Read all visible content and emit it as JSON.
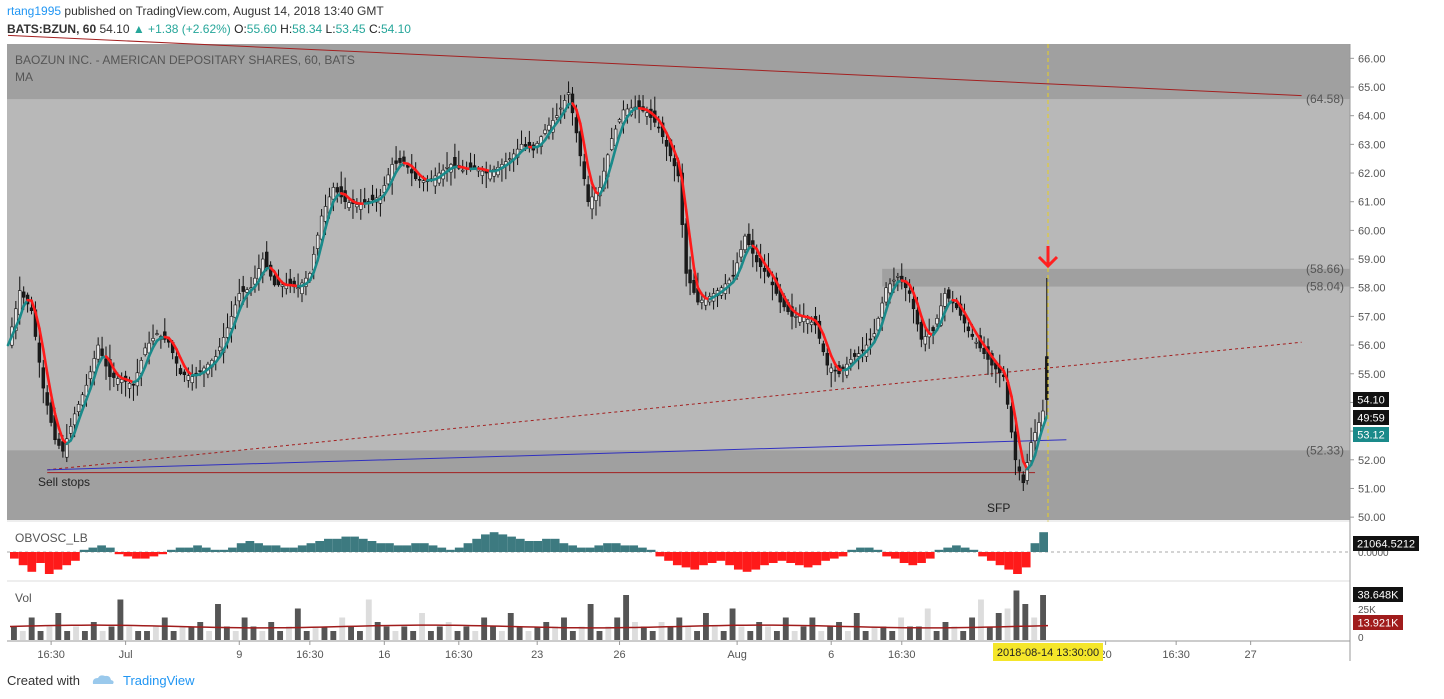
{
  "header": {
    "user": "rtang1995",
    "published": "published on TradingView.com, August 14, 2018 13:40 GMT",
    "symbol": "BATS:BZUN, 60",
    "last": "54.10",
    "change": "▲ +1.38 (+2.62%)",
    "o_label": "O:",
    "o": "55.60",
    "h_label": "H:",
    "h": "58.34",
    "l_label": "L:",
    "l": "53.45",
    "c_label": "C:",
    "c": "54.10"
  },
  "footer": {
    "created": "Created with",
    "brand": "TradingView"
  },
  "colors": {
    "panel": "#b8b8b8",
    "zone": "#a0a0a0",
    "up": "#e8e8e8",
    "down": "#1a1a1a",
    "ma_up": "#1a8a8a",
    "ma_down": "#ff1a1a",
    "resistance": "#a32020",
    "support_blue": "#3030c0",
    "osc_pos": "#3d7a80",
    "osc_neg": "#ff1a1a",
    "vol_ma": "#a01c1c",
    "arrow": "#ff2020",
    "cursor": "#e8d020"
  },
  "chart_data": [
    {
      "type": "candlestick",
      "title": "BAOZUN INC. - AMERICAN DEPOSITARY SHARES, 60, BATS",
      "indicator": "MA",
      "ylim": [
        49.9,
        66.5
      ],
      "y_ticks": [
        "50.00",
        "51.00",
        "52.00",
        "53.00",
        "54.00",
        "55.00",
        "56.00",
        "57.00",
        "58.00",
        "59.00",
        "60.00",
        "61.00",
        "62.00",
        "63.00",
        "64.00",
        "65.00",
        "66.00"
      ],
      "x_ticks": [
        "16:30",
        "Jul",
        "9",
        "16:30",
        "16",
        "16:30",
        "23",
        "26",
        "Aug",
        "6",
        "16:30",
        "20",
        "16:30",
        "27"
      ],
      "x_index_range": [
        0,
        250
      ],
      "x_ticks_index": [
        11,
        30,
        59,
        77,
        96,
        115,
        135,
        156,
        186,
        210,
        228,
        280,
        298,
        317
      ],
      "close_path": [
        [
          0,
          56.0
        ],
        [
          3,
          57.9
        ],
        [
          6,
          57.2
        ],
        [
          9,
          54.5
        ],
        [
          12,
          52.7
        ],
        [
          14,
          52.3
        ],
        [
          17,
          53.6
        ],
        [
          20,
          54.6
        ],
        [
          23,
          56.0
        ],
        [
          26,
          54.9
        ],
        [
          29,
          54.8
        ],
        [
          32,
          54.6
        ],
        [
          35,
          55.9
        ],
        [
          38,
          56.4
        ],
        [
          41,
          56.1
        ],
        [
          44,
          55.0
        ],
        [
          47,
          54.9
        ],
        [
          50,
          55.2
        ],
        [
          53,
          55.6
        ],
        [
          56,
          56.6
        ],
        [
          59,
          57.8
        ],
        [
          62,
          58.0
        ],
        [
          65,
          59.0
        ],
        [
          68,
          58.1
        ],
        [
          71,
          58.1
        ],
        [
          74,
          58.0
        ],
        [
          77,
          58.5
        ],
        [
          80,
          60.5
        ],
        [
          83,
          61.5
        ],
        [
          86,
          61.0
        ],
        [
          89,
          60.9
        ],
        [
          92,
          61.0
        ],
        [
          95,
          61.2
        ],
        [
          98,
          62.3
        ],
        [
          101,
          62.4
        ],
        [
          104,
          61.8
        ],
        [
          107,
          61.7
        ],
        [
          110,
          62.0
        ],
        [
          113,
          62.3
        ],
        [
          116,
          62.1
        ],
        [
          119,
          62.2
        ],
        [
          122,
          62.0
        ],
        [
          125,
          62.2
        ],
        [
          128,
          62.5
        ],
        [
          131,
          63.0
        ],
        [
          134,
          62.8
        ],
        [
          137,
          63.5
        ],
        [
          140,
          64.0
        ],
        [
          143,
          64.8
        ],
        [
          145,
          63.4
        ],
        [
          148,
          61.0
        ],
        [
          151,
          61.5
        ],
        [
          154,
          63.2
        ],
        [
          157,
          64.2
        ],
        [
          160,
          64.3
        ],
        [
          163,
          64.1
        ],
        [
          166,
          63.6
        ],
        [
          169,
          62.6
        ],
        [
          171,
          61.9
        ],
        [
          173,
          58.5
        ],
        [
          176,
          57.5
        ],
        [
          179,
          57.7
        ],
        [
          182,
          58.0
        ],
        [
          185,
          58.4
        ],
        [
          188,
          59.8
        ],
        [
          191,
          58.9
        ],
        [
          194,
          58.4
        ],
        [
          197,
          57.5
        ],
        [
          200,
          57.0
        ],
        [
          203,
          57.0
        ],
        [
          206,
          56.7
        ],
        [
          209,
          55.3
        ],
        [
          212,
          55.0
        ],
        [
          215,
          55.5
        ],
        [
          218,
          55.8
        ],
        [
          221,
          56.4
        ],
        [
          224,
          58.0
        ],
        [
          227,
          58.4
        ],
        [
          230,
          57.8
        ],
        [
          233,
          56.2
        ],
        [
          236,
          56.5
        ],
        [
          239,
          57.8
        ],
        [
          242,
          57.3
        ],
        [
          245,
          56.5
        ],
        [
          248,
          55.9
        ],
        [
          251,
          55.3
        ],
        [
          254,
          54.9
        ],
        [
          257,
          52.0
        ],
        [
          259,
          51.2
        ],
        [
          261,
          52.6
        ],
        [
          263,
          53.3
        ],
        [
          265,
          54.1
        ]
      ],
      "resistance_line": {
        "from": [
          0,
          66.8
        ],
        "to": [
          330,
          64.7
        ]
      },
      "support_line": {
        "from": [
          10,
          51.65
        ],
        "to": [
          270,
          52.7
        ]
      },
      "rising_dotted_line": {
        "from": [
          10,
          51.65
        ],
        "to": [
          330,
          56.1
        ]
      },
      "sell_stop_line": {
        "from": [
          10,
          51.55
        ],
        "to": [
          262,
          51.55
        ]
      },
      "zones": [
        {
          "from": 64.58,
          "to": 66.5
        },
        {
          "from": 49.9,
          "to": 52.33
        },
        {
          "from": 58.04,
          "to": 58.66,
          "x_from": 223
        }
      ],
      "levels": [
        "(64.58)",
        "(58.66)",
        "(58.04)",
        "(52.33)"
      ],
      "annotations": [
        "Sell stops",
        "SFP"
      ],
      "price_badges": [
        "54.10",
        "49:59",
        "53.12"
      ],
      "cursor_time": "2018-08-14 13:30:00"
    },
    {
      "type": "bar",
      "title": "OBVOSC_LB",
      "last_value": "21064.5212",
      "zero_label": "0.0000",
      "bars": [
        -0.3,
        -0.6,
        -0.9,
        -0.5,
        -1.0,
        -0.8,
        -0.6,
        -0.4,
        0.1,
        0.2,
        0.3,
        0.2,
        -0.1,
        -0.2,
        -0.3,
        -0.3,
        -0.2,
        -0.1,
        0.1,
        0.2,
        0.2,
        0.3,
        0.2,
        0.1,
        0.1,
        0.2,
        0.4,
        0.5,
        0.4,
        0.3,
        0.3,
        0.2,
        0.2,
        0.3,
        0.4,
        0.5,
        0.6,
        0.6,
        0.7,
        0.7,
        0.6,
        0.5,
        0.4,
        0.4,
        0.3,
        0.3,
        0.4,
        0.4,
        0.3,
        0.2,
        0.1,
        0.2,
        0.4,
        0.6,
        0.8,
        0.9,
        0.8,
        0.7,
        0.6,
        0.5,
        0.5,
        0.6,
        0.6,
        0.4,
        0.3,
        0.2,
        0.2,
        0.3,
        0.4,
        0.4,
        0.3,
        0.3,
        0.2,
        0.1,
        -0.2,
        -0.4,
        -0.6,
        -0.7,
        -0.8,
        -0.6,
        -0.5,
        -0.4,
        -0.6,
        -0.8,
        -0.9,
        -0.8,
        -0.6,
        -0.5,
        -0.4,
        -0.5,
        -0.6,
        -0.7,
        -0.6,
        -0.4,
        -0.3,
        -0.2,
        0.1,
        0.2,
        0.2,
        0.1,
        -0.2,
        -0.3,
        -0.5,
        -0.6,
        -0.5,
        -0.3,
        0.1,
        0.2,
        0.3,
        0.2,
        0.1,
        -0.2,
        -0.4,
        -0.6,
        -0.8,
        -1.0,
        -0.7,
        0.4,
        0.9
      ],
      "ylim": [
        -1.1,
        1.1
      ]
    },
    {
      "type": "bar",
      "title": "Vol",
      "last_value": "38.648K",
      "tick_label": "25K",
      "ma_label": "13.921K",
      "zero_label": "0",
      "bars": [
        0.3,
        0.2,
        0.5,
        0.2,
        0.3,
        0.6,
        0.2,
        0.3,
        0.2,
        0.4,
        0.2,
        0.3,
        0.9,
        0.3,
        0.2,
        0.2,
        0.3,
        0.5,
        0.2,
        0.3,
        0.3,
        0.4,
        0.2,
        0.8,
        0.3,
        0.2,
        0.5,
        0.3,
        0.2,
        0.4,
        0.2,
        0.3,
        0.7,
        0.2,
        0.3,
        0.3,
        0.2,
        0.5,
        0.3,
        0.2,
        0.9,
        0.4,
        0.3,
        0.2,
        0.3,
        0.2,
        0.6,
        0.2,
        0.3,
        0.4,
        0.2,
        0.3,
        0.2,
        0.5,
        0.3,
        0.2,
        0.6,
        0.3,
        0.2,
        0.3,
        0.4,
        0.3,
        0.5,
        0.2,
        0.3,
        0.8,
        0.2,
        0.3,
        0.5,
        1.0,
        0.4,
        0.3,
        0.2,
        0.4,
        0.3,
        0.5,
        0.3,
        0.2,
        0.6,
        0.3,
        0.2,
        0.7,
        0.3,
        0.2,
        0.4,
        0.3,
        0.2,
        0.5,
        0.2,
        0.3,
        0.5,
        0.2,
        0.3,
        0.4,
        0.2,
        0.6,
        0.2,
        0.3,
        0.3,
        0.2,
        0.5,
        0.3,
        0.3,
        0.7,
        0.2,
        0.4,
        0.3,
        0.2,
        0.5,
        0.9,
        0.3,
        0.6,
        0.7,
        1.1,
        0.8,
        0.5,
        1.0
      ],
      "up_mask_mod": 3,
      "ma_level": 0.3
    }
  ]
}
